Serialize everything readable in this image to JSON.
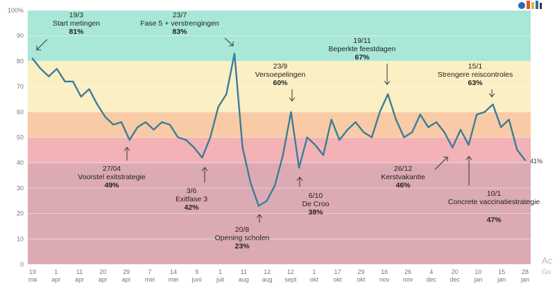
{
  "chart_data": {
    "type": "line",
    "ylim": [
      0,
      100
    ],
    "yticks": [
      {
        "v": 0,
        "label": "0"
      },
      {
        "v": 10,
        "label": "10"
      },
      {
        "v": 20,
        "label": "20"
      },
      {
        "v": 30,
        "label": "30"
      },
      {
        "v": 40,
        "label": "40"
      },
      {
        "v": 50,
        "label": "50"
      },
      {
        "v": 60,
        "label": "60"
      },
      {
        "v": 70,
        "label": "70"
      },
      {
        "v": 80,
        "label": "80"
      },
      {
        "v": 90,
        "label": "90"
      },
      {
        "v": 100,
        "label": "100%"
      }
    ],
    "bands": [
      {
        "from": 0,
        "to": 40,
        "color": "#dcaab3"
      },
      {
        "from": 40,
        "to": 50,
        "color": "#f2b2b6"
      },
      {
        "from": 50,
        "to": 60,
        "color": "#f8cba6"
      },
      {
        "from": 60,
        "to": 80,
        "color": "#fbefc4"
      },
      {
        "from": 80,
        "to": 100,
        "color": "#a9e7d8"
      }
    ],
    "line_color": "#3a7d97",
    "xticks": [
      {
        "day": "19",
        "month": "ma"
      },
      {
        "day": "1",
        "month": "apr"
      },
      {
        "day": "11",
        "month": "apr"
      },
      {
        "day": "20",
        "month": "apr"
      },
      {
        "day": "29",
        "month": "apr"
      },
      {
        "day": "7",
        "month": "mei"
      },
      {
        "day": "14",
        "month": "mei"
      },
      {
        "day": "9",
        "month": "juni"
      },
      {
        "day": "1",
        "month": "juli"
      },
      {
        "day": "11",
        "month": "aug"
      },
      {
        "day": "12",
        "month": "aug"
      },
      {
        "day": "12",
        "month": "sept"
      },
      {
        "day": "1",
        "month": "okt"
      },
      {
        "day": "17",
        "month": "okt"
      },
      {
        "day": "29",
        "month": "okt"
      },
      {
        "day": "16",
        "month": "nov"
      },
      {
        "day": "26",
        "month": "nov"
      },
      {
        "day": "4",
        "month": "dec"
      },
      {
        "day": "20",
        "month": "dec"
      },
      {
        "day": "10",
        "month": "jan"
      },
      {
        "day": "15",
        "month": "jan"
      },
      {
        "day": "28",
        "month": "jan"
      }
    ],
    "values": [
      81,
      77,
      74,
      77,
      72,
      72,
      66,
      69,
      63,
      58,
      55,
      56,
      49,
      54,
      56,
      53,
      56,
      55,
      50,
      49,
      46,
      42,
      50,
      62,
      67,
      83,
      46,
      32,
      23,
      25,
      31,
      43,
      60,
      38,
      50,
      47,
      43,
      57,
      49,
      53,
      56,
      52,
      50,
      60,
      67,
      57,
      50,
      52,
      59,
      54,
      56,
      52,
      46,
      53,
      47,
      59,
      60,
      63,
      54,
      57,
      45,
      41
    ],
    "end_label": "41%",
    "annotations": [
      {
        "date": "19/3",
        "text": "Start metingen",
        "value": "81%"
      },
      {
        "date": "23/7",
        "text": "Fase 5 + verstrengingen",
        "value": "83%"
      },
      {
        "date": "19/11",
        "text": "Beperkte feestdagen",
        "value": "67%"
      },
      {
        "date": "23/9",
        "text": "Versoepelingen",
        "value": "60%"
      },
      {
        "date": "15/1",
        "text": "Strengere reiscontroles",
        "value": "63%"
      },
      {
        "date": "27/04",
        "text": "Voorstel exitstrategie",
        "value": "49%"
      },
      {
        "date": "3/6",
        "text": "Exitfase 3",
        "value": "42%"
      },
      {
        "date": "6/10",
        "text": "De Croo",
        "value": "38%"
      },
      {
        "date": "26/12",
        "text": "Kerstvakantie",
        "value": "46%"
      },
      {
        "date": "10/1",
        "text": "Concrete vaccinatiestrategie",
        "value": "47%"
      },
      {
        "date": "20/8",
        "text": "Opening scholen",
        "value": "23%"
      }
    ]
  },
  "watermark": {
    "line1": "Ac",
    "line2": "Go"
  }
}
